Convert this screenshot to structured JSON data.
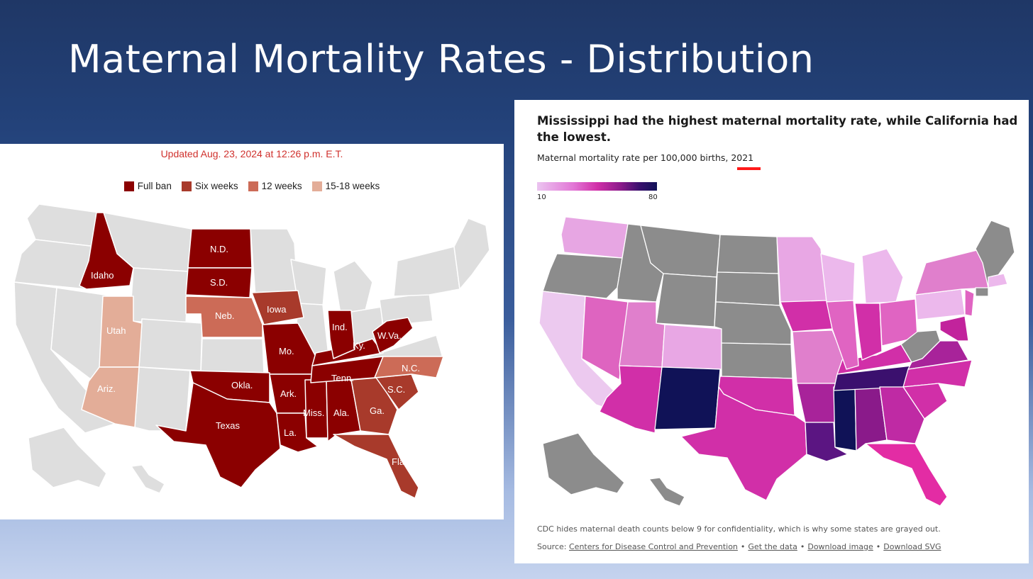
{
  "slide": {
    "title": "Maternal Mortality Rates - Distribution"
  },
  "left_map": {
    "updated": "Updated Aug. 23, 2024 at 12:26 p.m. E.T.",
    "legend": [
      {
        "label": "Full ban",
        "color": "#8b0000"
      },
      {
        "label": "Six weeks",
        "color": "#a83a2b"
      },
      {
        "label": "12 weeks",
        "color": "#cc6b57"
      },
      {
        "label": "15-18 weeks",
        "color": "#e3ad98"
      }
    ],
    "colors": {
      "none": "#dedede",
      "border": "#ffffff"
    },
    "state_labels": [
      "N.D.",
      "S.D.",
      "Idaho",
      "Iowa",
      "Neb.",
      "Utah",
      "Ind.",
      "W.Va.",
      "Ky.",
      "Mo.",
      "Tenn.",
      "N.C.",
      "S.C.",
      "Okla.",
      "Ark.",
      "Ariz.",
      "Texas",
      "Miss.",
      "Ala.",
      "Ga.",
      "La.",
      "Fla."
    ]
  },
  "right_map": {
    "title": "Mississippi had the highest maternal mortality rate, while California had the lowest.",
    "subtitle_prefix": "Maternal mortality rate per 100,000 births, ",
    "subtitle_year": "2021",
    "scale_min": "10",
    "scale_max": "80",
    "colors": {
      "gray": "#8c8c8c",
      "border": "#ffffff"
    },
    "footnote": "CDC hides maternal death counts below 9 for confidentiality, which is why some states are grayed out.",
    "source_label": "Source:",
    "links": [
      "Centers for Disease Control and Prevention",
      "Get the data",
      "Download image",
      "Download SVG"
    ]
  }
}
